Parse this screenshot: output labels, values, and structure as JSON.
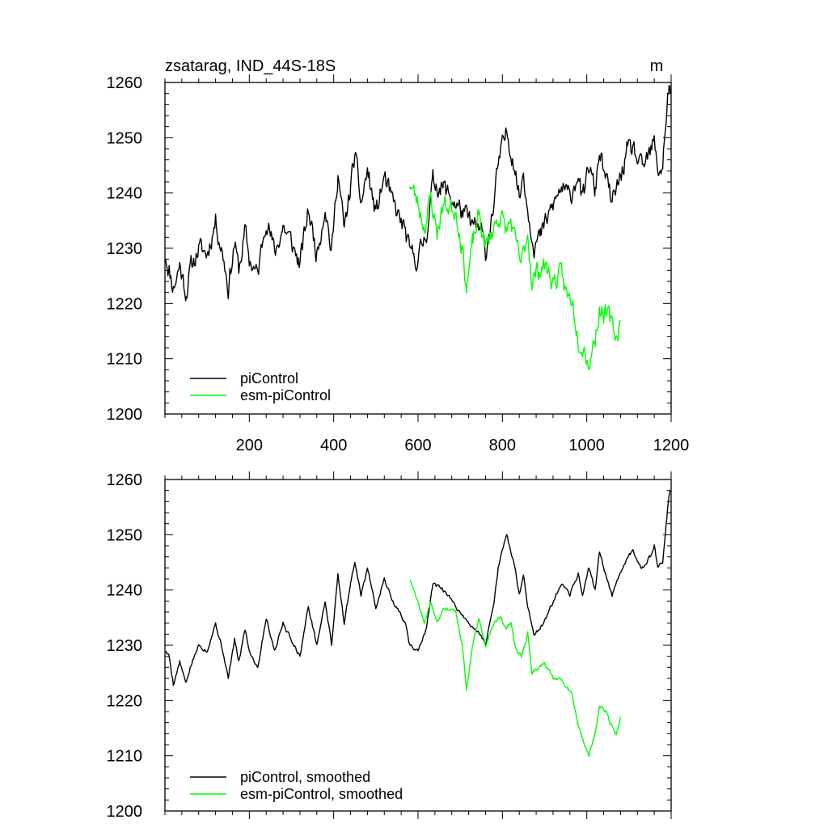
{
  "chart_data": [
    {
      "type": "line",
      "title": "zsatarag, IND_44S-18S",
      "units": "m",
      "xlabel": "",
      "ylabel": "",
      "xlim": [
        0,
        1200
      ],
      "ylim": [
        1200,
        1260
      ],
      "x_ticks": [
        200,
        400,
        600,
        800,
        1000,
        1200
      ],
      "y_ticks": [
        1200,
        1210,
        1220,
        1230,
        1240,
        1250,
        1260
      ],
      "show_x_tick_labels": true,
      "legend_position": "bottom-left",
      "series": [
        {
          "name": "piControl",
          "color": "#000000",
          "noise": 1.6,
          "seed": 11,
          "points": [
            [
              1,
              1229
            ],
            [
              10,
              1226
            ],
            [
              20,
              1223
            ],
            [
              35,
              1227
            ],
            [
              50,
              1222
            ],
            [
              60,
              1226
            ],
            [
              80,
              1230
            ],
            [
              100,
              1229
            ],
            [
              120,
              1235
            ],
            [
              140,
              1228
            ],
            [
              150,
              1223
            ],
            [
              165,
              1231
            ],
            [
              175,
              1226
            ],
            [
              190,
              1233
            ],
            [
              200,
              1228
            ],
            [
              220,
              1225
            ],
            [
              240,
              1236
            ],
            [
              260,
              1229
            ],
            [
              280,
              1234
            ],
            [
              300,
              1231
            ],
            [
              320,
              1227
            ],
            [
              340,
              1237
            ],
            [
              360,
              1229
            ],
            [
              380,
              1238
            ],
            [
              395,
              1229
            ],
            [
              410,
              1244
            ],
            [
              425,
              1233
            ],
            [
              440,
              1241
            ],
            [
              450,
              1247
            ],
            [
              465,
              1238
            ],
            [
              480,
              1244
            ],
            [
              500,
              1236
            ],
            [
              520,
              1243
            ],
            [
              540,
              1238
            ],
            [
              570,
              1233
            ],
            [
              580,
              1229
            ],
            [
              600,
              1228
            ],
            [
              620,
              1233
            ],
            [
              635,
              1242
            ],
            [
              660,
              1241
            ],
            [
              690,
              1238
            ],
            [
              710,
              1236
            ],
            [
              730,
              1234
            ],
            [
              750,
              1233
            ],
            [
              760,
              1229
            ],
            [
              770,
              1234
            ],
            [
              780,
              1238
            ],
            [
              790,
              1245
            ],
            [
              810,
              1251
            ],
            [
              830,
              1245
            ],
            [
              840,
              1239
            ],
            [
              850,
              1244
            ],
            [
              860,
              1237
            ],
            [
              875,
              1231
            ],
            [
              890,
              1232
            ],
            [
              910,
              1236
            ],
            [
              940,
              1241
            ],
            [
              960,
              1239
            ],
            [
              980,
              1244
            ],
            [
              990,
              1238
            ],
            [
              1005,
              1245
            ],
            [
              1020,
              1240
            ],
            [
              1030,
              1248
            ],
            [
              1040,
              1244
            ],
            [
              1060,
              1238
            ],
            [
              1080,
              1243
            ],
            [
              1095,
              1247
            ],
            [
              1110,
              1248
            ],
            [
              1130,
              1244
            ],
            [
              1150,
              1247
            ],
            [
              1160,
              1249
            ],
            [
              1168,
              1244
            ],
            [
              1180,
              1245
            ],
            [
              1186,
              1252
            ],
            [
              1192,
              1257
            ],
            [
              1195,
              1259
            ],
            [
              1198,
              1258
            ]
          ]
        },
        {
          "name": "esm-piControl",
          "color": "#00ff00",
          "noise": 1.6,
          "seed": 23,
          "points": [
            [
              580,
              1242
            ],
            [
              600,
              1238
            ],
            [
              615,
              1234
            ],
            [
              630,
              1239
            ],
            [
              645,
              1233
            ],
            [
              660,
              1238
            ],
            [
              690,
              1237
            ],
            [
              705,
              1230
            ],
            [
              715,
              1223
            ],
            [
              730,
              1231
            ],
            [
              745,
              1236
            ],
            [
              760,
              1230
            ],
            [
              780,
              1234
            ],
            [
              795,
              1236
            ],
            [
              810,
              1233
            ],
            [
              820,
              1235
            ],
            [
              830,
              1231
            ],
            [
              845,
              1227
            ],
            [
              860,
              1233
            ],
            [
              870,
              1224
            ],
            [
              885,
              1226
            ],
            [
              900,
              1227
            ],
            [
              920,
              1224
            ],
            [
              940,
              1225
            ],
            [
              955,
              1221
            ],
            [
              965,
              1221
            ],
            [
              980,
              1214
            ],
            [
              995,
              1212
            ],
            [
              1005,
              1209
            ],
            [
              1020,
              1214
            ],
            [
              1030,
              1219
            ],
            [
              1045,
              1218
            ],
            [
              1055,
              1217
            ],
            [
              1070,
              1214
            ],
            [
              1080,
              1217
            ]
          ]
        }
      ]
    },
    {
      "type": "line",
      "title": "",
      "xlabel": "",
      "ylabel": "",
      "xlim": [
        0,
        1200
      ],
      "ylim": [
        1200,
        1260
      ],
      "x_ticks": [
        200,
        400,
        600,
        800,
        1000,
        1200
      ],
      "y_ticks": [
        1200,
        1210,
        1220,
        1230,
        1240,
        1250,
        1260
      ],
      "show_x_tick_labels": false,
      "legend_position": "bottom-left",
      "series": [
        {
          "name": "piControl, smoothed",
          "color": "#000000",
          "noise": 0.3,
          "seed": 5,
          "points": [
            [
              1,
              1229
            ],
            [
              10,
              1228
            ],
            [
              20,
              1223
            ],
            [
              35,
              1227
            ],
            [
              50,
              1223
            ],
            [
              60,
              1226
            ],
            [
              80,
              1230
            ],
            [
              100,
              1229
            ],
            [
              120,
              1234
            ],
            [
              140,
              1228
            ],
            [
              150,
              1224
            ],
            [
              165,
              1231
            ],
            [
              175,
              1227
            ],
            [
              190,
              1233
            ],
            [
              200,
              1229
            ],
            [
              220,
              1226
            ],
            [
              240,
              1235
            ],
            [
              260,
              1229
            ],
            [
              280,
              1234
            ],
            [
              300,
              1231
            ],
            [
              320,
              1228
            ],
            [
              340,
              1237
            ],
            [
              360,
              1230
            ],
            [
              380,
              1238
            ],
            [
              395,
              1230
            ],
            [
              410,
              1243
            ],
            [
              425,
              1234
            ],
            [
              440,
              1241
            ],
            [
              450,
              1245
            ],
            [
              465,
              1239
            ],
            [
              480,
              1244
            ],
            [
              500,
              1237
            ],
            [
              520,
              1242
            ],
            [
              540,
              1238
            ],
            [
              570,
              1234
            ],
            [
              580,
              1230
            ],
            [
              600,
              1229
            ],
            [
              620,
              1233
            ],
            [
              635,
              1241
            ],
            [
              660,
              1240
            ],
            [
              690,
              1237
            ],
            [
              710,
              1235
            ],
            [
              730,
              1233
            ],
            [
              750,
              1232
            ],
            [
              760,
              1230
            ],
            [
              770,
              1234
            ],
            [
              780,
              1238
            ],
            [
              790,
              1244
            ],
            [
              810,
              1250
            ],
            [
              830,
              1244
            ],
            [
              840,
              1239
            ],
            [
              850,
              1243
            ],
            [
              860,
              1237
            ],
            [
              875,
              1232
            ],
            [
              890,
              1233
            ],
            [
              910,
              1236
            ],
            [
              940,
              1241
            ],
            [
              960,
              1239
            ],
            [
              980,
              1243
            ],
            [
              990,
              1239
            ],
            [
              1005,
              1244
            ],
            [
              1020,
              1240
            ],
            [
              1030,
              1247
            ],
            [
              1040,
              1244
            ],
            [
              1060,
              1239
            ],
            [
              1080,
              1243
            ],
            [
              1095,
              1246
            ],
            [
              1110,
              1247
            ],
            [
              1130,
              1244
            ],
            [
              1150,
              1246
            ],
            [
              1160,
              1248
            ],
            [
              1168,
              1244
            ],
            [
              1180,
              1245
            ],
            [
              1186,
              1250
            ],
            [
              1192,
              1255
            ],
            [
              1195,
              1257
            ],
            [
              1198,
              1258
            ]
          ]
        },
        {
          "name": "esm-piControl, smoothed",
          "color": "#00ff00",
          "noise": 0.3,
          "seed": 17,
          "points": [
            [
              580,
              1242
            ],
            [
              600,
              1238
            ],
            [
              615,
              1234
            ],
            [
              630,
              1238
            ],
            [
              645,
              1234
            ],
            [
              660,
              1237
            ],
            [
              690,
              1236
            ],
            [
              705,
              1230
            ],
            [
              715,
              1222
            ],
            [
              730,
              1230
            ],
            [
              745,
              1235
            ],
            [
              760,
              1230
            ],
            [
              780,
              1234
            ],
            [
              795,
              1235
            ],
            [
              810,
              1233
            ],
            [
              820,
              1234
            ],
            [
              830,
              1230
            ],
            [
              845,
              1228
            ],
            [
              860,
              1232
            ],
            [
              870,
              1225
            ],
            [
              885,
              1226
            ],
            [
              900,
              1227
            ],
            [
              920,
              1224
            ],
            [
              940,
              1224
            ],
            [
              955,
              1222
            ],
            [
              965,
              1221
            ],
            [
              980,
              1215
            ],
            [
              995,
              1212
            ],
            [
              1005,
              1210
            ],
            [
              1020,
              1214
            ],
            [
              1030,
              1219
            ],
            [
              1045,
              1218
            ],
            [
              1055,
              1216
            ],
            [
              1070,
              1214
            ],
            [
              1080,
              1217
            ]
          ]
        }
      ]
    }
  ]
}
